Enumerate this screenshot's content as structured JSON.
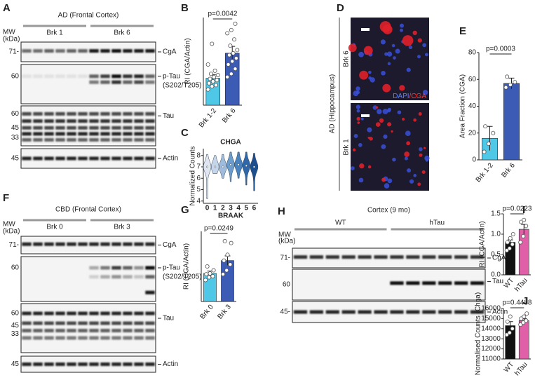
{
  "blots": {
    "A": {
      "letter": "A",
      "title": "AD (Frontal Cortex)",
      "mw": [
        "MW",
        "(kDa)"
      ],
      "groups": [
        "Brk 1",
        "Brk 6"
      ],
      "rows": [
        {
          "label": "CgA",
          "markers": [
            "71-"
          ]
        },
        {
          "label": "p-Tau",
          "sublabel": "(S202/T205)",
          "markers": [
            "60"
          ]
        },
        {
          "label": "Tau",
          "markers": [
            "60",
            "45",
            "33"
          ]
        },
        {
          "label": "Actin",
          "markers": [
            "45"
          ]
        }
      ]
    },
    "F": {
      "letter": "F",
      "title": "CBD (Frontal Cortex)",
      "mw": [
        "MW",
        "(kDa)"
      ],
      "groups": [
        "Brk 0",
        "Brk 3"
      ],
      "rows": [
        {
          "label": "CgA",
          "markers": [
            "71-"
          ]
        },
        {
          "label": "p-Tau",
          "sublabel": "(S202/T205)",
          "markers": [
            "60"
          ]
        },
        {
          "label": "Tau",
          "markers": [
            "60",
            "45",
            "33"
          ]
        },
        {
          "label": "Actin",
          "markers": [
            "45"
          ]
        }
      ]
    },
    "H": {
      "letter": "H",
      "title": "Cortex (9 mo)",
      "mw": [
        "MW",
        "(kDa)"
      ],
      "groups": [
        "WT",
        "hTau"
      ],
      "rows": [
        {
          "label": "CgA",
          "markers": [
            "71-"
          ]
        },
        {
          "label": "Tau",
          "markers": [
            "60"
          ]
        },
        {
          "label": "Actin",
          "markers": [
            "45-"
          ]
        }
      ]
    }
  },
  "panel_d": {
    "letter": "D",
    "side_label": "AD (Hippocampus)",
    "images": [
      "Brk 6",
      "Brk 1"
    ],
    "stain": [
      "DAPI",
      "/CGA"
    ]
  },
  "chart_data": [
    {
      "type": "bar",
      "letter": "B",
      "y_label": "RI (CGA/Actin)",
      "categories": [
        "Brk 1-2",
        "Brk 6"
      ],
      "values": [
        4.3,
        8.3
      ],
      "errors": [
        0.6,
        1.1
      ],
      "colors": [
        "#4fc8e8",
        "#3b5bb5"
      ],
      "points": [
        [
          2.5,
          3,
          3.2,
          3.5,
          3.8,
          4,
          4.2,
          4.5,
          4.8,
          5,
          5.5,
          6.5,
          9.8
        ],
        [
          4.5,
          5,
          5.8,
          6.5,
          7,
          7.5,
          8,
          8.3,
          8.8,
          9.5,
          10.5,
          11.5,
          12,
          13
        ]
      ],
      "p_value": "p=0.0042",
      "ylim": [
        0,
        14
      ]
    },
    {
      "type": "violin",
      "letter": "C",
      "title": "CHGA",
      "x_label": "BRAAK",
      "y_label": "Normalized Counts",
      "categories": [
        "0",
        "1",
        "2",
        "3",
        "4",
        "5",
        "6"
      ],
      "values": [
        7.0,
        7.0,
        7.0,
        7.2,
        7.2,
        7.1,
        7.0
      ],
      "min": [
        4.2,
        6.4,
        6.0,
        5.7,
        6.0,
        5.4,
        4.9
      ],
      "max": [
        8.1,
        8.0,
        8.1,
        8.3,
        8.3,
        8.3,
        8.2
      ],
      "colors": [
        "#dfe6f2",
        "#c6d6ea",
        "#9fbcdc",
        "#6c9ccc",
        "#4a82bd",
        "#2f67a8",
        "#1d4f8f"
      ],
      "ylim": [
        3.8,
        8.6
      ],
      "yticks": [
        4,
        5,
        6,
        7,
        8
      ]
    },
    {
      "type": "bar",
      "letter": "E",
      "y_label": "Area Fraction (CGA)",
      "categories": [
        "Brk 1-2",
        "Brk 6"
      ],
      "values": [
        16,
        57
      ],
      "errors": [
        9,
        4
      ],
      "colors": [
        "#4fc8e8",
        "#3b5bb5"
      ],
      "points": [
        [
          6,
          12,
          20,
          25
        ],
        [
          54,
          56,
          58,
          62
        ]
      ],
      "p_value": "p=0.0003",
      "ylim": [
        0,
        80
      ],
      "yticks": [
        0,
        20,
        40,
        60,
        80
      ]
    },
    {
      "type": "bar",
      "letter": "G",
      "y_label": "RI (CGA/Actin)",
      "categories": [
        "Brk 0",
        "Brk 3"
      ],
      "values": [
        0.72,
        1.05
      ],
      "errors": [
        0.06,
        0.12
      ],
      "colors": [
        "#4fc8e8",
        "#3b5bb5"
      ],
      "points": [
        [
          0.55,
          0.62,
          0.65,
          0.7,
          0.72,
          0.8,
          0.9
        ],
        [
          0.7,
          0.8,
          0.95,
          1.05,
          1.2,
          1.5,
          1.55
        ]
      ],
      "p_value": "p=0.0249",
      "ylim": [
        0,
        1.8
      ]
    },
    {
      "type": "bar",
      "letter": "I",
      "y_label": "RI (CGA/Actin)",
      "categories": [
        "WT",
        "hTau"
      ],
      "values": [
        0.8,
        1.12
      ],
      "errors": [
        0.06,
        0.12
      ],
      "colors": [
        "#111111",
        "#e060a8"
      ],
      "points": [
        [
          0.6,
          0.65,
          0.75,
          0.8,
          0.9,
          1.0
        ],
        [
          0.8,
          0.95,
          1.2,
          1.3,
          1.35
        ]
      ],
      "p_value": "p=0.0223",
      "ylim": [
        0,
        1.5
      ],
      "yticks": [
        {
          "value": 0,
          "label": "0.0"
        },
        0.5,
        {
          "value": 1,
          "label": "1.0"
        },
        1.5
      ]
    },
    {
      "type": "bar",
      "letter": "J",
      "y_label": "Normalised Counts (Chga)",
      "categories": [
        "WT",
        "hTau"
      ],
      "values": [
        14300,
        14800
      ],
      "errors": [
        400,
        200
      ],
      "colors": [
        "#111111",
        "#e060a8"
      ],
      "points": [
        [
          13400,
          13600,
          14000,
          14700,
          15200
        ],
        [
          14400,
          14600,
          14800,
          15000,
          15200,
          15500
        ]
      ],
      "p_value": "p=0.4488",
      "ylim": [
        11000,
        16000
      ],
      "yticks": [
        11000,
        12000,
        13000,
        14000,
        15000,
        16000
      ]
    }
  ]
}
